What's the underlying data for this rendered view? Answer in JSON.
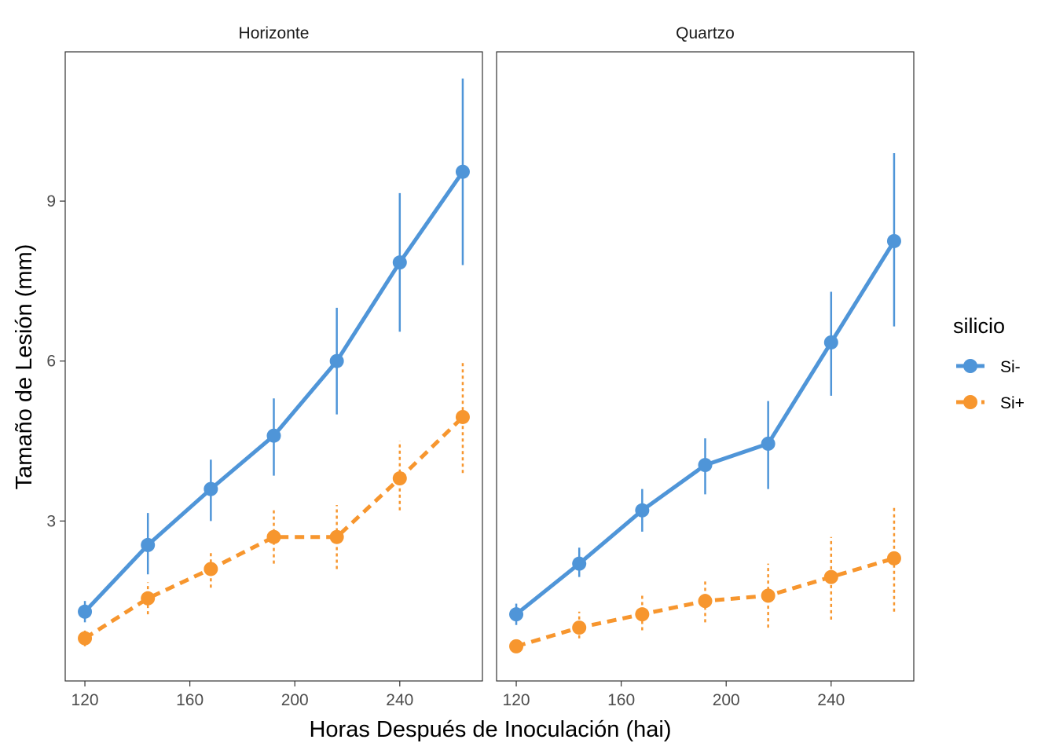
{
  "chart_data": {
    "type": "line",
    "facets": [
      {
        "title": "Horizonte",
        "series": [
          {
            "name": "Si-",
            "points": [
              {
                "x": 120,
                "y": 1.3,
                "lo": 1.1,
                "hi": 1.5
              },
              {
                "x": 144,
                "y": 2.55,
                "lo": 2.0,
                "hi": 3.15
              },
              {
                "x": 168,
                "y": 3.6,
                "lo": 3.0,
                "hi": 4.15
              },
              {
                "x": 192,
                "y": 4.6,
                "lo": 3.85,
                "hi": 5.3
              },
              {
                "x": 216,
                "y": 6.0,
                "lo": 5.0,
                "hi": 7.0
              },
              {
                "x": 240,
                "y": 7.85,
                "lo": 6.55,
                "hi": 9.15
              },
              {
                "x": 264,
                "y": 9.55,
                "lo": 7.8,
                "hi": 11.3
              }
            ]
          },
          {
            "name": "Si+",
            "points": [
              {
                "x": 120,
                "y": 0.8,
                "lo": 0.65,
                "hi": 0.95
              },
              {
                "x": 144,
                "y": 1.55,
                "lo": 1.25,
                "hi": 1.85
              },
              {
                "x": 168,
                "y": 2.1,
                "lo": 1.75,
                "hi": 2.45
              },
              {
                "x": 192,
                "y": 2.7,
                "lo": 2.2,
                "hi": 3.2
              },
              {
                "x": 216,
                "y": 2.7,
                "lo": 2.1,
                "hi": 3.3
              },
              {
                "x": 240,
                "y": 3.8,
                "lo": 3.2,
                "hi": 4.5
              },
              {
                "x": 264,
                "y": 4.95,
                "lo": 3.9,
                "hi": 6.0
              }
            ]
          }
        ]
      },
      {
        "title": "Quartzo",
        "series": [
          {
            "name": "Si-",
            "points": [
              {
                "x": 120,
                "y": 1.25,
                "lo": 1.05,
                "hi": 1.45
              },
              {
                "x": 144,
                "y": 2.2,
                "lo": 1.95,
                "hi": 2.5
              },
              {
                "x": 168,
                "y": 3.2,
                "lo": 2.8,
                "hi": 3.6
              },
              {
                "x": 192,
                "y": 4.05,
                "lo": 3.5,
                "hi": 4.55
              },
              {
                "x": 216,
                "y": 4.45,
                "lo": 3.6,
                "hi": 5.25
              },
              {
                "x": 240,
                "y": 6.35,
                "lo": 5.35,
                "hi": 7.3
              },
              {
                "x": 264,
                "y": 8.25,
                "lo": 6.65,
                "hi": 9.9
              }
            ]
          },
          {
            "name": "Si+",
            "points": [
              {
                "x": 120,
                "y": 0.65,
                "lo": 0.55,
                "hi": 0.75
              },
              {
                "x": 144,
                "y": 1.0,
                "lo": 0.8,
                "hi": 1.3
              },
              {
                "x": 168,
                "y": 1.25,
                "lo": 0.95,
                "hi": 1.6
              },
              {
                "x": 192,
                "y": 1.5,
                "lo": 1.1,
                "hi": 1.9
              },
              {
                "x": 216,
                "y": 1.6,
                "lo": 1.0,
                "hi": 2.2
              },
              {
                "x": 240,
                "y": 1.95,
                "lo": 1.15,
                "hi": 2.7
              },
              {
                "x": 264,
                "y": 2.3,
                "lo": 1.3,
                "hi": 3.3
              }
            ]
          }
        ]
      }
    ],
    "xlabel": "Horas Después de Inoculación (hai)",
    "ylabel": "Tamaño de Lesión (mm)",
    "x_ticks": [
      120,
      160,
      200,
      240
    ],
    "y_ticks": [
      3,
      6,
      9
    ],
    "xlim": [
      112.5,
      271.5
    ],
    "ylim": [
      0.0,
      11.8
    ],
    "grid": false,
    "legend": {
      "title": "silicio",
      "placement": "right",
      "entries": [
        "Si-",
        "Si+"
      ]
    },
    "colors": {
      "Si-": "#4F95D8",
      "Si+": "#F7962E"
    },
    "line_styles": {
      "Si-": "solid",
      "Si+": "dashed"
    }
  }
}
